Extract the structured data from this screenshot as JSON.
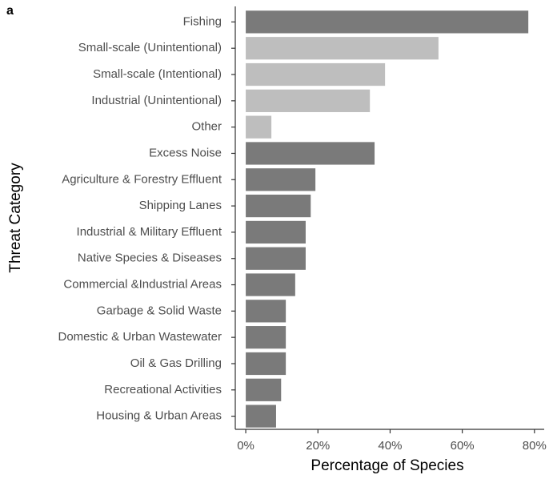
{
  "chart_data": {
    "type": "barh",
    "panel_label": "a",
    "categories": [
      "Fishing",
      "Small-scale (Unintentional)",
      "Small-scale (Intentional)",
      "Industrial (Unintentional)",
      "Other",
      "Excess Noise",
      "Agriculture & Forestry Effluent",
      "Shipping Lanes",
      "Industrial & Military Effluent",
      "Native Species & Diseases",
      "Commercial &Industrial Areas",
      "Garbage & Solid Waste",
      "Domestic & Urban Wastewater",
      "Oil & Gas Drilling",
      "Recreational Activities",
      "Housing & Urban Areas"
    ],
    "values": [
      78.3,
      53.4,
      38.6,
      34.4,
      7.1,
      35.7,
      19.3,
      18.0,
      16.6,
      16.6,
      13.7,
      11.1,
      11.1,
      11.1,
      9.8,
      8.4
    ],
    "colors": [
      "#7a7a7a",
      "#bebebe",
      "#bebebe",
      "#bebebe",
      "#bebebe",
      "#7a7a7a",
      "#7a7a7a",
      "#7a7a7a",
      "#7a7a7a",
      "#7a7a7a",
      "#7a7a7a",
      "#7a7a7a",
      "#7a7a7a",
      "#7a7a7a",
      "#7a7a7a",
      "#7a7a7a"
    ],
    "xlabel": "Percentage of Species",
    "ylabel": "Threat Category",
    "xlim": [
      -2.9,
      82.7
    ],
    "xticks": [
      {
        "value": 0,
        "label": "0%"
      },
      {
        "value": 20,
        "label": "20%"
      },
      {
        "value": 40,
        "label": "40%"
      },
      {
        "value": 60,
        "label": "60%"
      },
      {
        "value": 80,
        "label": "80%"
      }
    ]
  }
}
